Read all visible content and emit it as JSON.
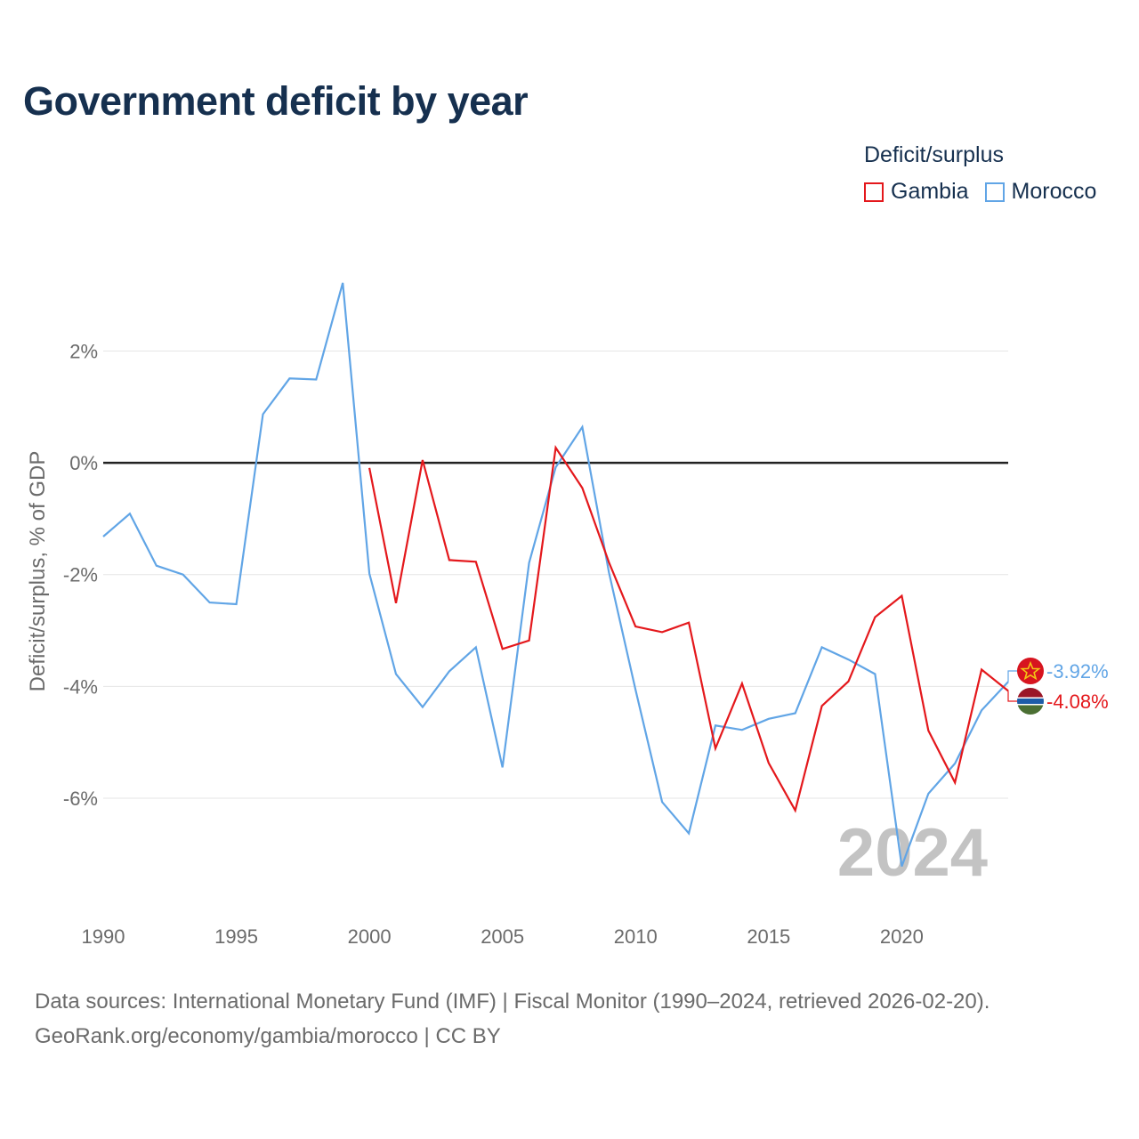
{
  "title": "Government deficit by year",
  "legend": {
    "title": "Deficit/surplus",
    "items": [
      {
        "label": "Gambia",
        "color": "#e4181c"
      },
      {
        "label": "Morocco",
        "color": "#61a5e6"
      }
    ]
  },
  "watermark_year": "2024",
  "footer": {
    "line1": "Data sources: International Monetary Fund (IMF) | Fiscal Monitor (1990–2024, retrieved 2026-02-20).",
    "line2": "GeoRank.org/economy/gambia/morocco | CC BY"
  },
  "chart_data": {
    "type": "line",
    "title": "Government deficit by year",
    "xlabel": "",
    "ylabel": "Deficit/surplus, % of GDP",
    "xlim": [
      1990,
      2024
    ],
    "ylim": [
      -7.8,
      3.6
    ],
    "x_ticks": [
      1990,
      1995,
      2000,
      2005,
      2010,
      2015,
      2020
    ],
    "x_tick_labels": [
      "1990",
      "1995",
      "2000",
      "2005",
      "2010",
      "2015",
      "2020"
    ],
    "y_ticks": [
      2,
      0,
      -2,
      -4,
      -6
    ],
    "y_tick_labels": [
      "2%",
      "0%",
      "-2%",
      "-4%",
      "-6%"
    ],
    "zero_line": true,
    "grid": true,
    "legend_position": "top-right",
    "series": [
      {
        "name": "Morocco",
        "color": "#61a5e6",
        "end_label": "-3.92%",
        "x": [
          1990,
          1991,
          1992,
          1993,
          1994,
          1995,
          1996,
          1997,
          1998,
          1999,
          2000,
          2001,
          2002,
          2003,
          2004,
          2005,
          2006,
          2007,
          2008,
          2009,
          2010,
          2011,
          2012,
          2013,
          2014,
          2015,
          2016,
          2017,
          2018,
          2019,
          2020,
          2021,
          2022,
          2023,
          2024
        ],
        "values": [
          -1.32,
          -0.91,
          -1.84,
          -2.0,
          -2.5,
          -2.53,
          0.87,
          1.51,
          1.49,
          3.22,
          -1.98,
          -3.78,
          -4.37,
          -3.73,
          -3.3,
          -5.45,
          -1.79,
          -0.08,
          0.64,
          -1.96,
          -4.06,
          -6.07,
          -6.63,
          -4.7,
          -4.78,
          -4.58,
          -4.48,
          -3.3,
          -3.52,
          -3.78,
          -7.22,
          -5.92,
          -5.38,
          -4.43,
          -3.92
        ]
      },
      {
        "name": "Gambia",
        "color": "#e4181c",
        "end_label": "-4.08%",
        "x": [
          2000,
          2001,
          2002,
          2003,
          2004,
          2005,
          2006,
          2007,
          2008,
          2009,
          2010,
          2011,
          2012,
          2013,
          2014,
          2015,
          2016,
          2017,
          2018,
          2019,
          2020,
          2021,
          2022,
          2023,
          2024
        ],
        "values": [
          -0.09,
          -2.51,
          0.05,
          -1.74,
          -1.77,
          -3.33,
          -3.18,
          0.27,
          -0.45,
          -1.78,
          -2.93,
          -3.03,
          -2.86,
          -5.11,
          -3.95,
          -5.37,
          -6.22,
          -4.35,
          -3.91,
          -2.76,
          -2.38,
          -4.79,
          -5.72,
          -3.7,
          -4.08
        ]
      }
    ]
  }
}
